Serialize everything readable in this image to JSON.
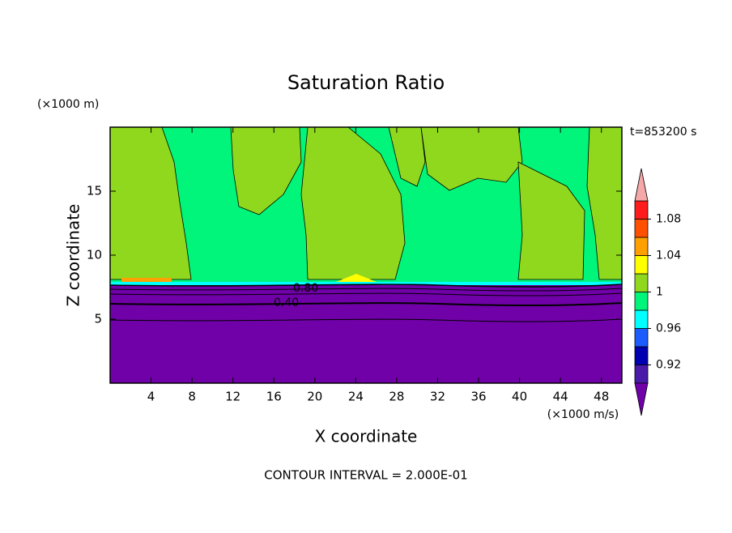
{
  "chart_data": {
    "type": "contour",
    "title": "Saturation Ratio",
    "y_unit": "(×1000 m)",
    "x_unit": "(×1000 m/s)",
    "time_label": "t=853200 s",
    "xlabel": "X coordinate",
    "ylabel": "Z coordinate",
    "footer": "CONTOUR INTERVAL = 2.000E-01",
    "contour_labels": [
      "0.80",
      "0.40"
    ],
    "xlim": [
      0,
      50
    ],
    "xticks": [
      4,
      8,
      12,
      16,
      20,
      24,
      28,
      32,
      36,
      40,
      44,
      48
    ],
    "ylim": [
      0,
      20
    ],
    "yticks": [
      5,
      10,
      15
    ],
    "clim": [
      0.9,
      1.1
    ],
    "cticks": [
      0.92,
      0.96,
      1,
      1.04,
      1.08
    ],
    "colors": [
      "#4a1aa8",
      "#0000b0",
      "#1c5cff",
      "#00ffff",
      "#00f57a",
      "#8fd81e",
      "#ffff00",
      "#ffa000",
      "#ff5000",
      "#ff1c1c"
    ],
    "under_color": "#7000a8",
    "over_color": "#f4a8a8"
  }
}
